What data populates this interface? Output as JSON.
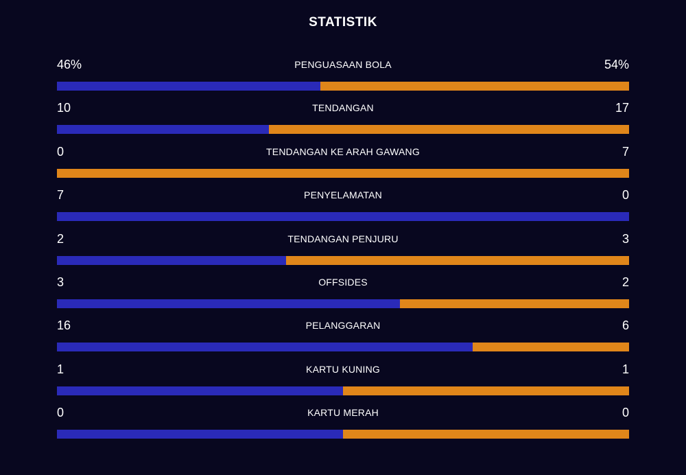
{
  "title": "STATISTIK",
  "colors": {
    "background": "#08071f",
    "home": "#2a2ab8",
    "away": "#e0861a",
    "text": "#ffffff"
  },
  "stats": [
    {
      "label": "PENGUASAAN BOLA",
      "home": "46%",
      "away": "54%",
      "home_share": 0.46
    },
    {
      "label": "TENDANGAN",
      "home": "10",
      "away": "17",
      "home_share": 0.37
    },
    {
      "label": "TENDANGAN KE ARAH GAWANG",
      "home": "0",
      "away": "7",
      "home_share": 0.0
    },
    {
      "label": "PENYELAMATAN",
      "home": "7",
      "away": "0",
      "home_share": 1.0
    },
    {
      "label": "TENDANGAN PENJURU",
      "home": "2",
      "away": "3",
      "home_share": 0.4
    },
    {
      "label": "OFFSIDES",
      "home": "3",
      "away": "2",
      "home_share": 0.6
    },
    {
      "label": "PELANGGARAN",
      "home": "16",
      "away": "6",
      "home_share": 0.727
    },
    {
      "label": "KARTU KUNING",
      "home": "1",
      "away": "1",
      "home_share": 0.5
    },
    {
      "label": "KARTU MERAH",
      "home": "0",
      "away": "0",
      "home_share": 0.5
    }
  ]
}
